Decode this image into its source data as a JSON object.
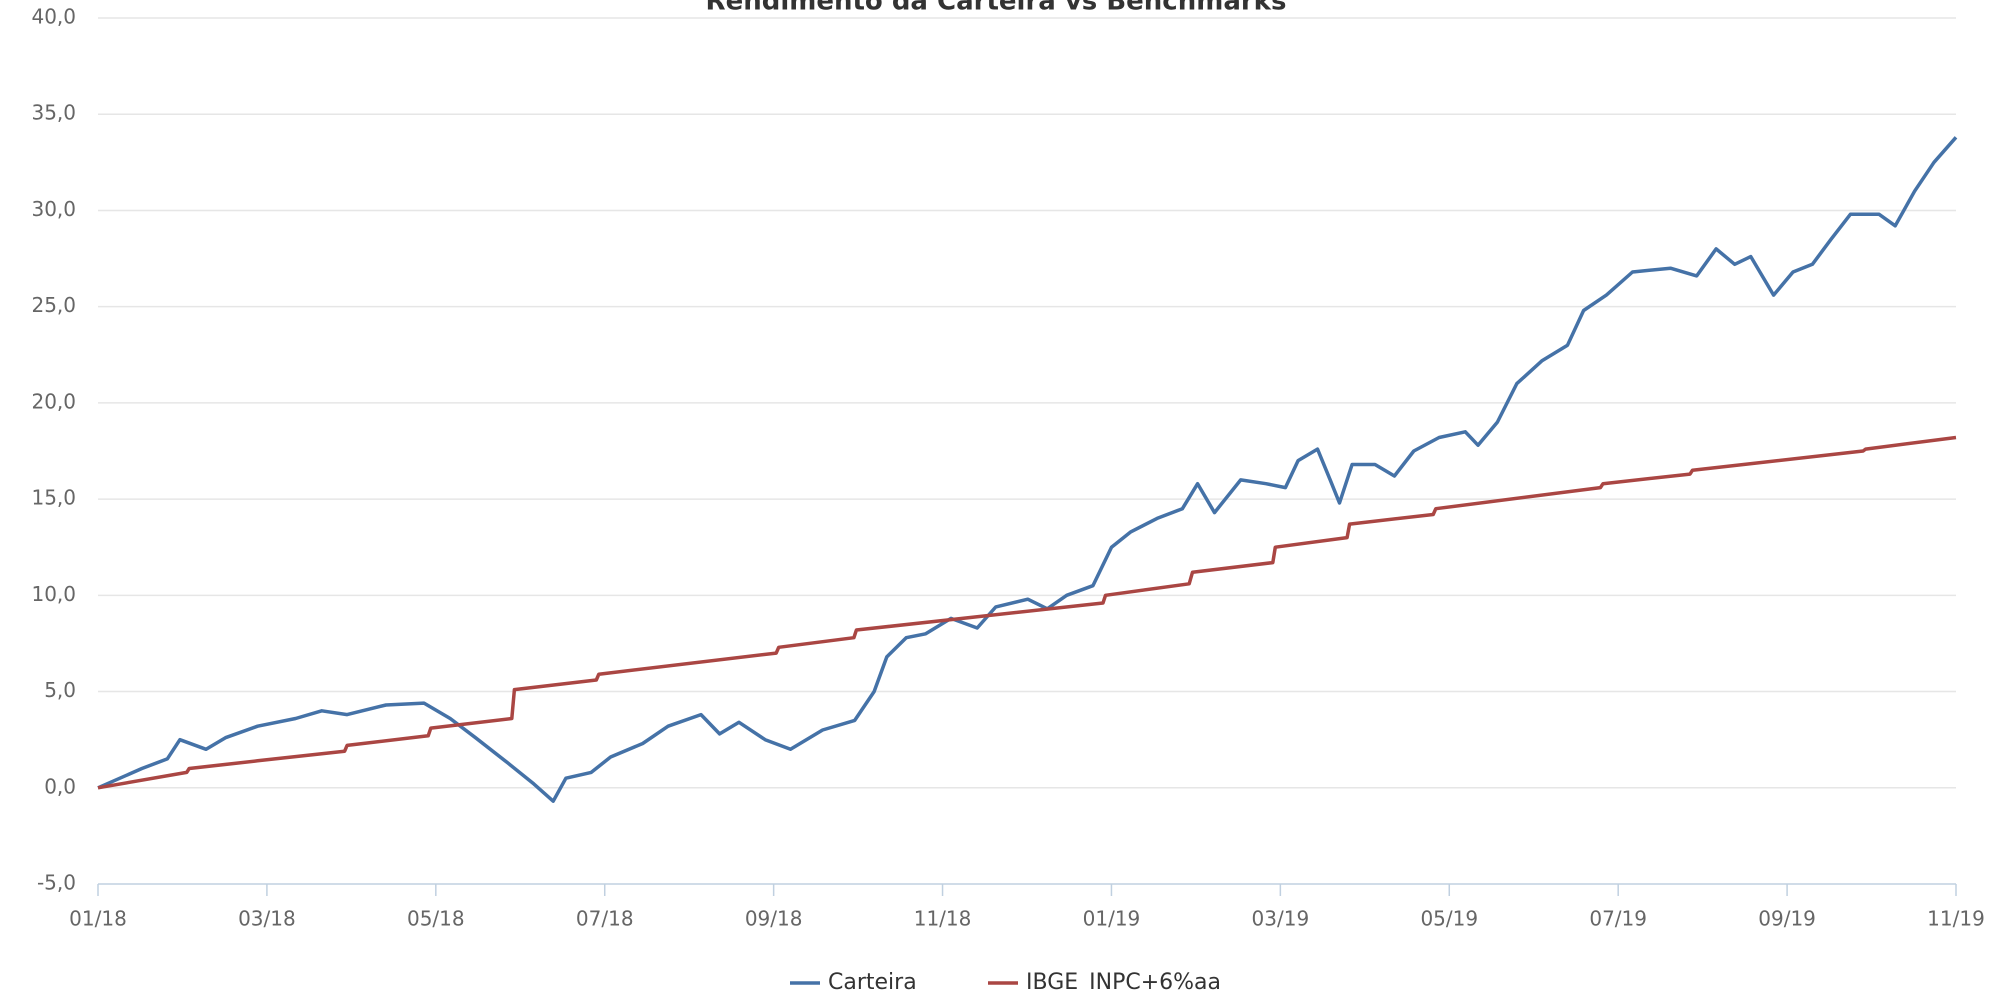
{
  "chart_data": {
    "type": "line",
    "title": "Rendimento da Carteira vs Benchmarks",
    "xlim": [
      0,
      22
    ],
    "xticks": [
      {
        "value": 0,
        "label": "01/18"
      },
      {
        "value": 2,
        "label": "03/18"
      },
      {
        "value": 4,
        "label": "05/18"
      },
      {
        "value": 6,
        "label": "07/18"
      },
      {
        "value": 8,
        "label": "09/18"
      },
      {
        "value": 10,
        "label": "11/18"
      },
      {
        "value": 12,
        "label": "01/19"
      },
      {
        "value": 14,
        "label": "03/19"
      },
      {
        "value": 16,
        "label": "05/19"
      },
      {
        "value": 18,
        "label": "07/19"
      },
      {
        "value": 20,
        "label": "09/19"
      },
      {
        "value": 22,
        "label": "11/19"
      }
    ],
    "ylim": [
      -5,
      40
    ],
    "yticks": [
      {
        "value": -5,
        "label": "-5,0"
      },
      {
        "value": 0,
        "label": "0,0"
      },
      {
        "value": 5,
        "label": "5,0"
      },
      {
        "value": 10,
        "label": "10,0"
      },
      {
        "value": 15,
        "label": "15,0"
      },
      {
        "value": 20,
        "label": "20,0"
      },
      {
        "value": 25,
        "label": "25,0"
      },
      {
        "value": 30,
        "label": "30,0"
      },
      {
        "value": 35,
        "label": "35,0"
      },
      {
        "value": 40,
        "label": "40,0"
      }
    ],
    "grid": true,
    "legend": "bottom",
    "series": [
      {
        "name": "Carteira",
        "color": "#4572a7",
        "x": [
          0,
          0.52,
          0.82,
          0.97,
          1.28,
          1.51,
          1.89,
          2.34,
          2.65,
          2.95,
          3.41,
          3.86,
          4.17,
          4.47,
          4.85,
          5.16,
          5.39,
          5.54,
          5.84,
          6.07,
          6.45,
          6.75,
          7.14,
          7.36,
          7.59,
          7.9,
          8.2,
          8.58,
          8.96,
          9.19,
          9.34,
          9.57,
          9.8,
          10.1,
          10.41,
          10.63,
          11.01,
          11.24,
          11.47,
          11.78,
          12.0,
          12.23,
          12.54,
          12.84,
          13.02,
          13.22,
          13.53,
          13.83,
          14.06,
          14.21,
          14.44,
          14.59,
          14.7,
          14.85,
          15.12,
          15.35,
          15.58,
          15.88,
          16.19,
          16.34,
          16.57,
          16.8,
          17.1,
          17.4,
          17.59,
          17.86,
          18.17,
          18.62,
          18.93,
          19.16,
          19.38,
          19.57,
          19.84,
          20.07,
          20.3,
          20.52,
          20.75,
          21.09,
          21.28,
          21.51,
          21.74,
          22
        ],
        "values": [
          0,
          1.0,
          1.5,
          2.5,
          2.0,
          2.6,
          3.2,
          3.6,
          4.0,
          3.8,
          4.3,
          4.4,
          3.6,
          2.6,
          1.3,
          0.2,
          -0.7,
          0.5,
          0.8,
          1.6,
          2.3,
          3.2,
          3.8,
          2.8,
          3.4,
          2.5,
          2.0,
          3.0,
          3.5,
          5.0,
          6.8,
          7.8,
          8.0,
          8.8,
          8.3,
          9.4,
          9.8,
          9.3,
          10.0,
          10.5,
          12.5,
          13.3,
          14.0,
          14.5,
          15.8,
          14.3,
          16.0,
          15.8,
          15.6,
          17.0,
          17.6,
          16.0,
          14.8,
          16.8,
          16.8,
          16.2,
          17.5,
          18.2,
          18.5,
          17.8,
          19.0,
          21.0,
          22.2,
          23.0,
          24.8,
          25.6,
          26.8,
          27.0,
          26.6,
          28.0,
          27.2,
          27.6,
          25.6,
          26.8,
          27.2,
          28.5,
          29.8,
          29.8,
          29.2,
          31.0,
          32.5,
          33.8
        ]
      },
      {
        "name": "IBGE_INPC+6%aa",
        "color": "#aa4643",
        "x": [
          0,
          1.05,
          1.08,
          1.89,
          2.92,
          2.95,
          3.91,
          3.94,
          4.9,
          4.93,
          5.9,
          5.93,
          8.03,
          8.06,
          8.95,
          8.98,
          11.9,
          11.93,
          12.92,
          12.96,
          13.91,
          13.94,
          14.79,
          14.82,
          15.81,
          15.84,
          17.79,
          17.82,
          18.85,
          18.88,
          20.9,
          20.93,
          22
        ],
        "values": [
          0,
          0.8,
          1.0,
          1.4,
          1.9,
          2.2,
          2.7,
          3.1,
          3.6,
          5.1,
          5.6,
          5.9,
          7.0,
          7.3,
          7.8,
          8.2,
          9.6,
          10.0,
          10.6,
          11.2,
          11.7,
          12.5,
          13.0,
          13.7,
          14.2,
          14.5,
          15.6,
          15.8,
          16.3,
          16.5,
          17.5,
          17.6,
          18.2
        ]
      }
    ]
  }
}
